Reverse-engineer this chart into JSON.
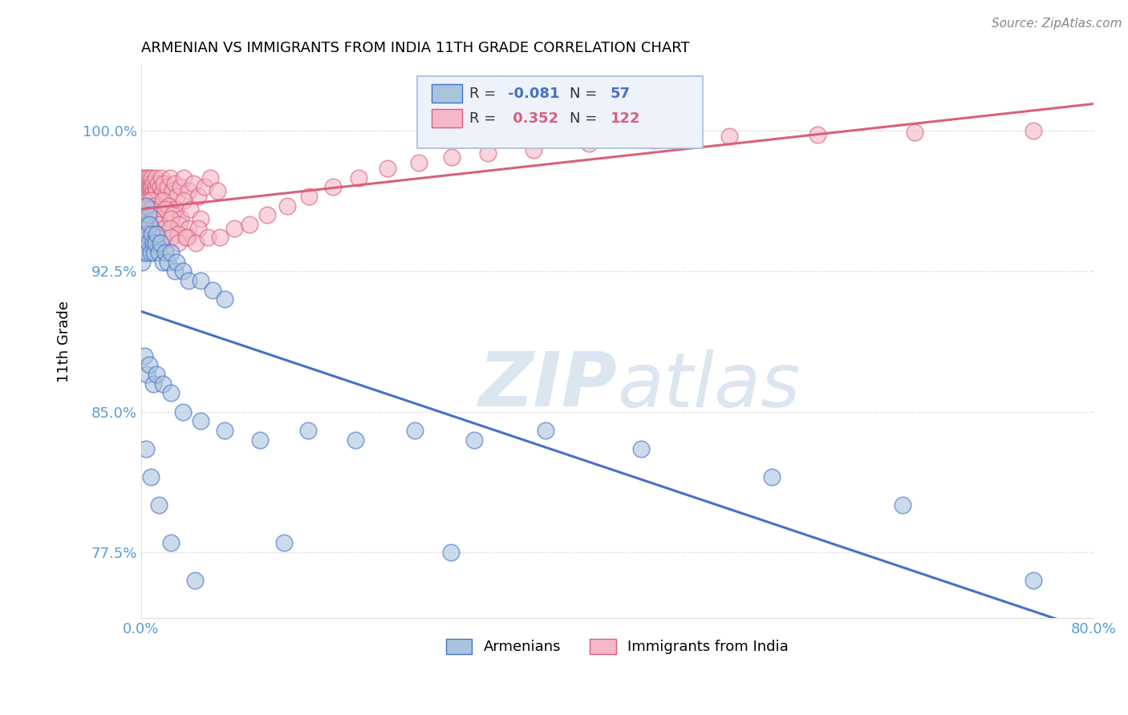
{
  "title": "ARMENIAN VS IMMIGRANTS FROM INDIA 11TH GRADE CORRELATION CHART",
  "source": "Source: ZipAtlas.com",
  "ylabel": "11th Grade",
  "xlim": [
    0.0,
    0.8
  ],
  "ylim": [
    0.74,
    1.035
  ],
  "yticks": [
    1.0,
    0.925,
    0.85,
    0.775
  ],
  "ytick_labels": [
    "100.0%",
    "92.5%",
    "85.0%",
    "77.5%"
  ],
  "xticks": [
    0.0,
    0.1,
    0.2,
    0.3,
    0.4,
    0.5,
    0.6,
    0.7,
    0.8
  ],
  "xtick_labels": [
    "0.0%",
    "",
    "",
    "",
    "",
    "",
    "",
    "",
    "80.0%"
  ],
  "armenian_R": -0.081,
  "armenian_N": 57,
  "india_R": 0.352,
  "india_N": 122,
  "blue_color": "#aac4e0",
  "pink_color": "#f5b8c8",
  "blue_line_color": "#4472c4",
  "pink_line_color": "#d9607a",
  "watermark_color": "#dce6f0",
  "tick_color": "#5b9bd5",
  "grid_color": "#cccccc",
  "background_color": "#ffffff",
  "armenian_x": [
    0.001,
    0.002,
    0.003,
    0.003,
    0.004,
    0.004,
    0.005,
    0.005,
    0.006,
    0.006,
    0.007,
    0.008,
    0.009,
    0.01,
    0.011,
    0.012,
    0.013,
    0.015,
    0.016,
    0.018,
    0.02,
    0.022,
    0.025,
    0.028,
    0.03,
    0.035,
    0.04,
    0.05,
    0.06,
    0.07,
    0.003,
    0.005,
    0.007,
    0.01,
    0.013,
    0.018,
    0.025,
    0.035,
    0.05,
    0.07,
    0.1,
    0.14,
    0.18,
    0.23,
    0.28,
    0.34,
    0.42,
    0.53,
    0.64,
    0.75,
    0.004,
    0.008,
    0.015,
    0.025,
    0.045,
    0.12,
    0.26
  ],
  "armenian_y": [
    0.93,
    0.94,
    0.935,
    0.95,
    0.945,
    0.96,
    0.935,
    0.945,
    0.94,
    0.955,
    0.95,
    0.935,
    0.945,
    0.94,
    0.935,
    0.94,
    0.945,
    0.935,
    0.94,
    0.93,
    0.935,
    0.93,
    0.935,
    0.925,
    0.93,
    0.925,
    0.92,
    0.92,
    0.915,
    0.91,
    0.88,
    0.87,
    0.875,
    0.865,
    0.87,
    0.865,
    0.86,
    0.85,
    0.845,
    0.84,
    0.835,
    0.84,
    0.835,
    0.84,
    0.835,
    0.84,
    0.83,
    0.815,
    0.8,
    0.76,
    0.83,
    0.815,
    0.8,
    0.78,
    0.76,
    0.78,
    0.775
  ],
  "india_x": [
    0.001,
    0.001,
    0.002,
    0.002,
    0.002,
    0.003,
    0.003,
    0.003,
    0.004,
    0.004,
    0.004,
    0.005,
    0.005,
    0.005,
    0.006,
    0.006,
    0.006,
    0.007,
    0.007,
    0.008,
    0.008,
    0.008,
    0.009,
    0.009,
    0.01,
    0.01,
    0.011,
    0.012,
    0.012,
    0.013,
    0.014,
    0.015,
    0.016,
    0.017,
    0.018,
    0.019,
    0.02,
    0.022,
    0.024,
    0.026,
    0.028,
    0.03,
    0.033,
    0.036,
    0.04,
    0.044,
    0.048,
    0.053,
    0.058,
    0.064,
    0.002,
    0.004,
    0.006,
    0.008,
    0.011,
    0.014,
    0.018,
    0.023,
    0.029,
    0.036,
    0.001,
    0.003,
    0.005,
    0.008,
    0.011,
    0.015,
    0.02,
    0.026,
    0.033,
    0.041,
    0.002,
    0.004,
    0.007,
    0.01,
    0.014,
    0.019,
    0.025,
    0.032,
    0.04,
    0.05,
    0.002,
    0.004,
    0.006,
    0.009,
    0.013,
    0.018,
    0.024,
    0.031,
    0.039,
    0.048,
    0.001,
    0.002,
    0.004,
    0.006,
    0.008,
    0.01,
    0.013,
    0.016,
    0.02,
    0.025,
    0.031,
    0.038,
    0.046,
    0.056,
    0.066,
    0.078,
    0.091,
    0.106,
    0.123,
    0.141,
    0.161,
    0.183,
    0.207,
    0.233,
    0.261,
    0.291,
    0.33,
    0.376,
    0.43,
    0.494,
    0.568,
    0.65,
    0.75
  ],
  "india_y": [
    0.97,
    0.975,
    0.965,
    0.972,
    0.968,
    0.97,
    0.975,
    0.965,
    0.972,
    0.968,
    0.97,
    0.965,
    0.972,
    0.975,
    0.968,
    0.972,
    0.965,
    0.97,
    0.975,
    0.968,
    0.972,
    0.965,
    0.97,
    0.975,
    0.968,
    0.972,
    0.965,
    0.97,
    0.975,
    0.968,
    0.972,
    0.965,
    0.97,
    0.975,
    0.968,
    0.972,
    0.965,
    0.97,
    0.975,
    0.968,
    0.972,
    0.965,
    0.97,
    0.975,
    0.968,
    0.972,
    0.965,
    0.97,
    0.975,
    0.968,
    0.96,
    0.962,
    0.958,
    0.963,
    0.96,
    0.958,
    0.963,
    0.96,
    0.958,
    0.963,
    0.955,
    0.958,
    0.953,
    0.958,
    0.955,
    0.953,
    0.958,
    0.955,
    0.953,
    0.958,
    0.95,
    0.953,
    0.948,
    0.953,
    0.95,
    0.948,
    0.953,
    0.95,
    0.948,
    0.953,
    0.945,
    0.948,
    0.943,
    0.948,
    0.945,
    0.943,
    0.948,
    0.945,
    0.943,
    0.948,
    0.94,
    0.943,
    0.938,
    0.943,
    0.94,
    0.938,
    0.943,
    0.94,
    0.938,
    0.943,
    0.94,
    0.943,
    0.94,
    0.943,
    0.943,
    0.948,
    0.95,
    0.955,
    0.96,
    0.965,
    0.97,
    0.975,
    0.98,
    0.983,
    0.986,
    0.988,
    0.99,
    0.993,
    0.995,
    0.997,
    0.998,
    0.999,
    1.0
  ]
}
